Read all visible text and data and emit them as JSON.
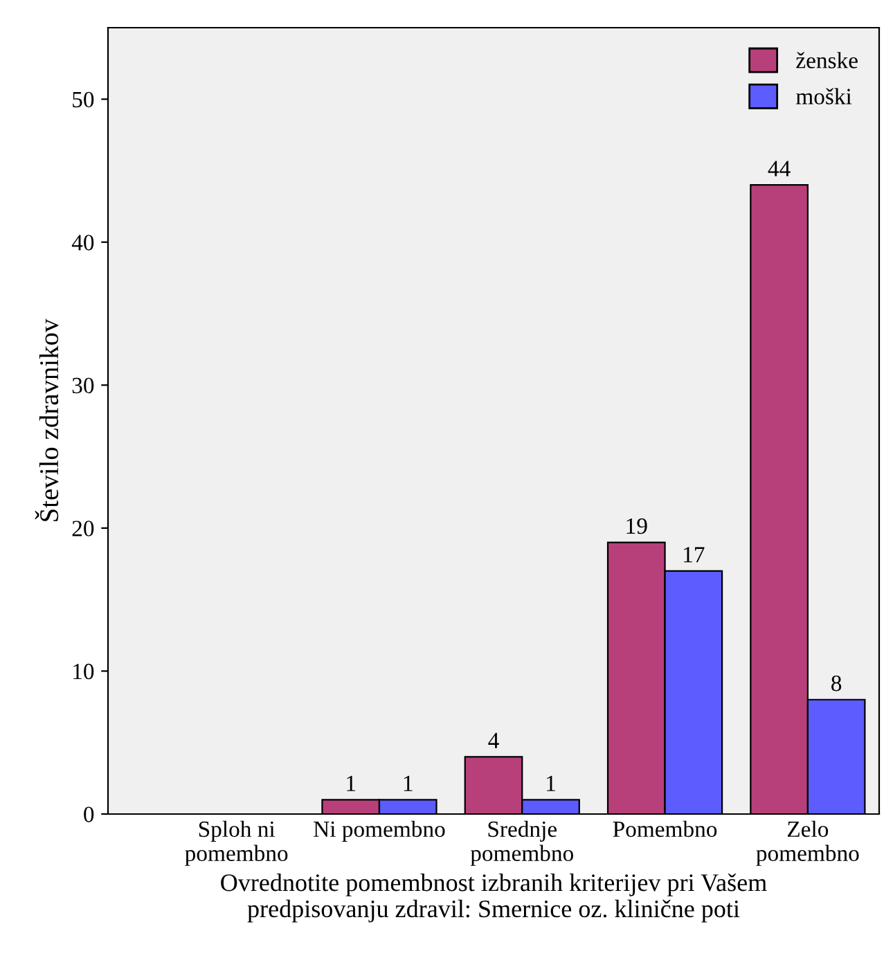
{
  "chart_data": {
    "type": "bar",
    "xlabel": "Ovrednotite pomembnost izbranih kriterijev pri Vašem\npredpisovanju zdravil: Smernice oz. klinične poti",
    "ylabel": "Število zdravnikov",
    "categories": [
      "Sploh ni\npomembno",
      "Ni pomembno",
      "Srednje\npomembno",
      "Pomembno",
      "Zelo\npomembno"
    ],
    "series": [
      {
        "name": "ženske",
        "color": "#b8407a",
        "values": [
          0,
          1,
          4,
          19,
          44
        ],
        "value_labels": [
          null,
          "1",
          "4",
          "19",
          "44"
        ]
      },
      {
        "name": "moški",
        "color": "#5c5cff",
        "values": [
          0,
          1,
          1,
          17,
          8
        ],
        "value_labels": [
          null,
          "1",
          "1",
          "17",
          "8"
        ]
      }
    ],
    "ylim": [
      0,
      55
    ],
    "yticks": [
      0,
      10,
      20,
      30,
      40,
      50
    ],
    "grid": false,
    "legend": "top right"
  }
}
